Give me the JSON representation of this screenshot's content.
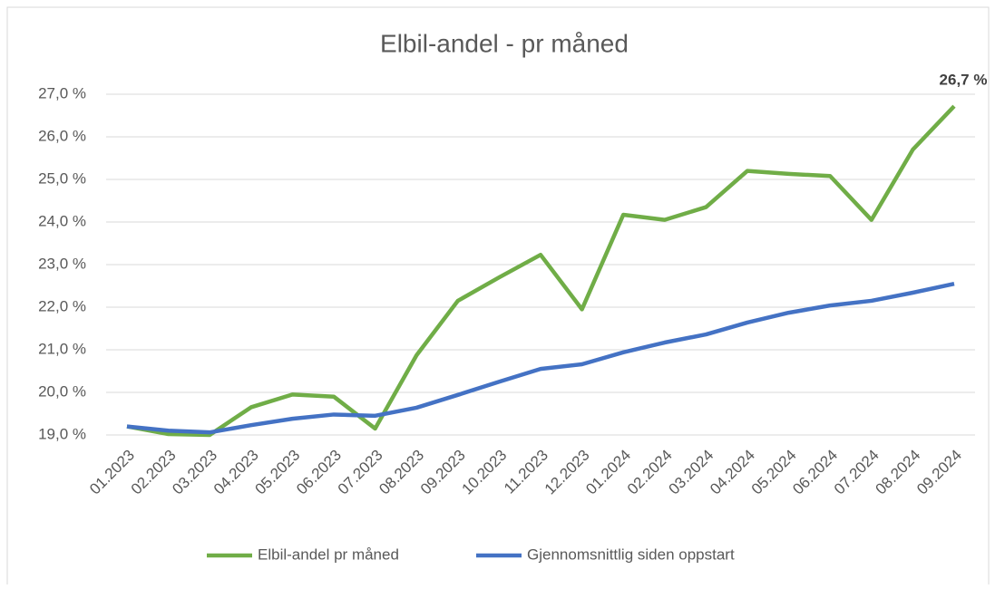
{
  "chart_data": {
    "type": "line",
    "title": "Elbil-andel - pr måned",
    "categories": [
      "01.2023",
      "02.2023",
      "03.2023",
      "04.2023",
      "05.2023",
      "06.2023",
      "07.2023",
      "08.2023",
      "09.2023",
      "10.2023",
      "11.2023",
      "12.2023",
      "01.2024",
      "02.2024",
      "03.2024",
      "04.2024",
      "05.2024",
      "06.2024",
      "07.2024",
      "08.2024",
      "09.2024"
    ],
    "series": [
      {
        "name": "Elbil-andel pr måned",
        "color": "#70ad47",
        "values": [
          19.2,
          19.02,
          19.0,
          19.65,
          19.95,
          19.9,
          19.15,
          20.87,
          22.15,
          22.7,
          23.23,
          21.95,
          24.17,
          24.05,
          24.35,
          25.2,
          25.13,
          25.08,
          24.05,
          25.7,
          26.72
        ],
        "value_labels": [
          null,
          null,
          null,
          null,
          null,
          null,
          null,
          null,
          null,
          null,
          null,
          null,
          null,
          null,
          null,
          null,
          null,
          null,
          null,
          null,
          "26,7 %"
        ]
      },
      {
        "name": "Gjennomsnittlig siden oppstart",
        "color": "#4472c4",
        "values": [
          19.2,
          19.1,
          19.06,
          19.23,
          19.38,
          19.48,
          19.45,
          19.64,
          19.94,
          20.25,
          20.55,
          20.66,
          20.94,
          21.17,
          21.36,
          21.64,
          21.87,
          22.04,
          22.15,
          22.34,
          22.55
        ]
      }
    ],
    "ylim": [
      19,
      27
    ],
    "yticks": [
      {
        "value": 19,
        "label": "19,0 %"
      },
      {
        "value": 20,
        "label": "20,0 %"
      },
      {
        "value": 21,
        "label": "21,0 %"
      },
      {
        "value": 22,
        "label": "22,0 %"
      },
      {
        "value": 23,
        "label": "23,0 %"
      },
      {
        "value": 24,
        "label": "24,0 %"
      },
      {
        "value": 25,
        "label": "25,0 %"
      },
      {
        "value": 26,
        "label": "26,0 %"
      },
      {
        "value": 27,
        "label": "27,0 %"
      }
    ],
    "grid": true,
    "legend": "bottom"
  }
}
